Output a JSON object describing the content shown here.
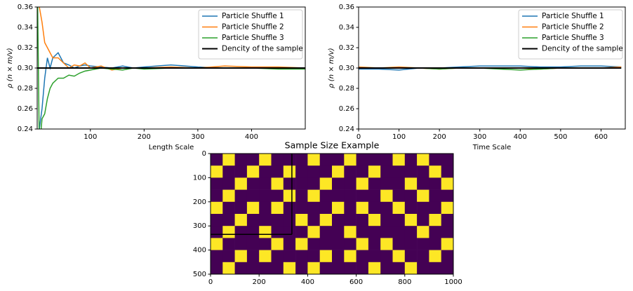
{
  "chart_data": [
    {
      "type": "line",
      "xlabel": "Length Scale",
      "ylabel": "ρ (n × m/v)",
      "x": [
        1,
        5,
        10,
        15,
        20,
        25,
        30,
        40,
        50,
        60,
        70,
        80,
        90,
        100,
        120,
        140,
        160,
        180,
        200,
        250,
        300,
        350,
        400,
        450,
        500
      ],
      "series": [
        {
          "name": "Particle Shuffle 1",
          "color": "#1f77b4",
          "values": [
            0.2,
            0.24,
            0.26,
            0.29,
            0.31,
            0.3,
            0.31,
            0.315,
            0.305,
            0.303,
            0.3,
            0.302,
            0.303,
            0.302,
            0.301,
            0.3,
            0.302,
            0.3,
            0.301,
            0.303,
            0.301,
            0.3,
            0.3,
            0.3,
            0.3
          ]
        },
        {
          "name": "Particle Shuffle 2",
          "color": "#ff7f0e",
          "values": [
            0.4,
            0.36,
            0.345,
            0.325,
            0.32,
            0.315,
            0.31,
            0.31,
            0.305,
            0.3,
            0.303,
            0.302,
            0.305,
            0.3,
            0.302,
            0.298,
            0.3,
            0.3,
            0.3,
            0.301,
            0.3,
            0.302,
            0.301,
            0.301,
            0.3
          ]
        },
        {
          "name": "Particle Shuffle 3",
          "color": "#2ca02c",
          "values": [
            0.4,
            0.22,
            0.25,
            0.255,
            0.27,
            0.28,
            0.285,
            0.29,
            0.29,
            0.293,
            0.292,
            0.295,
            0.297,
            0.298,
            0.3,
            0.299,
            0.298,
            0.3,
            0.299,
            0.3,
            0.3,
            0.3,
            0.3,
            0.299,
            0.299
          ]
        },
        {
          "name": "Dencity of the sample",
          "color": "#000000",
          "values": [
            0.3,
            0.3,
            0.3,
            0.3,
            0.3,
            0.3,
            0.3,
            0.3,
            0.3,
            0.3,
            0.3,
            0.3,
            0.3,
            0.3,
            0.3,
            0.3,
            0.3,
            0.3,
            0.3,
            0.3,
            0.3,
            0.3,
            0.3,
            0.3,
            0.3
          ]
        }
      ],
      "xlim": [
        1,
        500
      ],
      "xticks": [
        100,
        200,
        300,
        400
      ],
      "ylim": [
        0.24,
        0.36
      ],
      "yticks": [
        0.24,
        0.26,
        0.28,
        {
          "value": 0.3,
          "label": "0.30"
        },
        0.32,
        0.34,
        0.36
      ],
      "legend": "upper right"
    },
    {
      "type": "line",
      "xlabel": "Time Scale",
      "ylabel": "ρ (n × m/v)",
      "x": [
        0,
        50,
        100,
        150,
        200,
        250,
        300,
        350,
        400,
        450,
        500,
        550,
        600,
        650
      ],
      "series": [
        {
          "name": "Particle Shuffle 1",
          "color": "#1f77b4",
          "values": [
            0.299,
            0.299,
            0.298,
            0.3,
            0.3,
            0.301,
            0.302,
            0.302,
            0.302,
            0.301,
            0.301,
            0.302,
            0.302,
            0.301
          ]
        },
        {
          "name": "Particle Shuffle 2",
          "color": "#ff7f0e",
          "values": [
            0.301,
            0.3,
            0.301,
            0.3,
            0.299,
            0.3,
            0.3,
            0.3,
            0.3,
            0.299,
            0.3,
            0.3,
            0.3,
            0.301
          ]
        },
        {
          "name": "Particle Shuffle 3",
          "color": "#2ca02c",
          "values": [
            0.3,
            0.3,
            0.3,
            0.3,
            0.299,
            0.3,
            0.3,
            0.299,
            0.298,
            0.299,
            0.3,
            0.3,
            0.3,
            0.3
          ]
        },
        {
          "name": "Dencity of the sample",
          "color": "#000000",
          "values": [
            0.3,
            0.3,
            0.3,
            0.3,
            0.3,
            0.3,
            0.3,
            0.3,
            0.3,
            0.3,
            0.3,
            0.3,
            0.3,
            0.3
          ]
        }
      ],
      "xlim": [
        0,
        660
      ],
      "xticks": [
        0,
        100,
        200,
        300,
        400,
        500,
        600
      ],
      "ylim": [
        0.24,
        0.36
      ],
      "yticks": [
        0.24,
        0.26,
        0.28,
        {
          "value": 0.3,
          "label": "0.30"
        },
        0.32,
        0.34,
        0.36
      ],
      "legend": "upper right"
    },
    {
      "type": "heatmap",
      "title": "Sample Size Example",
      "xlim": [
        0,
        1000
      ],
      "xticks": [
        0,
        200,
        400,
        600,
        800,
        1000
      ],
      "ylim": [
        500,
        0
      ],
      "yticks": [
        0,
        100,
        200,
        300,
        400,
        500
      ],
      "colors": [
        "#440154",
        "#fde725"
      ],
      "sample_box": [
        335,
        335
      ],
      "z": [
        [
          0,
          1,
          0,
          0,
          1,
          0,
          0,
          0,
          1,
          0,
          0,
          1,
          0,
          0,
          0,
          1,
          0,
          1,
          0,
          0
        ],
        [
          1,
          0,
          0,
          1,
          0,
          0,
          1,
          0,
          0,
          0,
          1,
          0,
          0,
          1,
          0,
          0,
          0,
          0,
          1,
          0
        ],
        [
          0,
          0,
          1,
          0,
          0,
          1,
          0,
          0,
          0,
          1,
          0,
          0,
          1,
          0,
          0,
          0,
          1,
          0,
          0,
          1
        ],
        [
          0,
          1,
          0,
          0,
          0,
          0,
          1,
          0,
          1,
          0,
          0,
          0,
          0,
          0,
          1,
          0,
          0,
          1,
          0,
          0
        ],
        [
          1,
          0,
          0,
          1,
          0,
          1,
          0,
          0,
          0,
          0,
          1,
          0,
          1,
          0,
          0,
          1,
          0,
          0,
          0,
          1
        ],
        [
          0,
          0,
          1,
          0,
          0,
          0,
          0,
          1,
          0,
          1,
          0,
          0,
          0,
          1,
          0,
          0,
          1,
          0,
          1,
          0
        ],
        [
          0,
          1,
          0,
          0,
          1,
          0,
          0,
          0,
          1,
          0,
          0,
          1,
          0,
          0,
          0,
          0,
          0,
          1,
          0,
          0
        ],
        [
          1,
          0,
          0,
          0,
          0,
          1,
          0,
          1,
          0,
          0,
          0,
          0,
          1,
          0,
          1,
          0,
          0,
          0,
          0,
          1
        ],
        [
          0,
          0,
          1,
          0,
          1,
          0,
          0,
          0,
          0,
          1,
          0,
          1,
          0,
          0,
          0,
          1,
          0,
          0,
          1,
          0
        ],
        [
          0,
          1,
          0,
          0,
          0,
          0,
          1,
          0,
          1,
          0,
          0,
          0,
          0,
          1,
          0,
          0,
          1,
          0,
          0,
          0
        ]
      ]
    }
  ]
}
